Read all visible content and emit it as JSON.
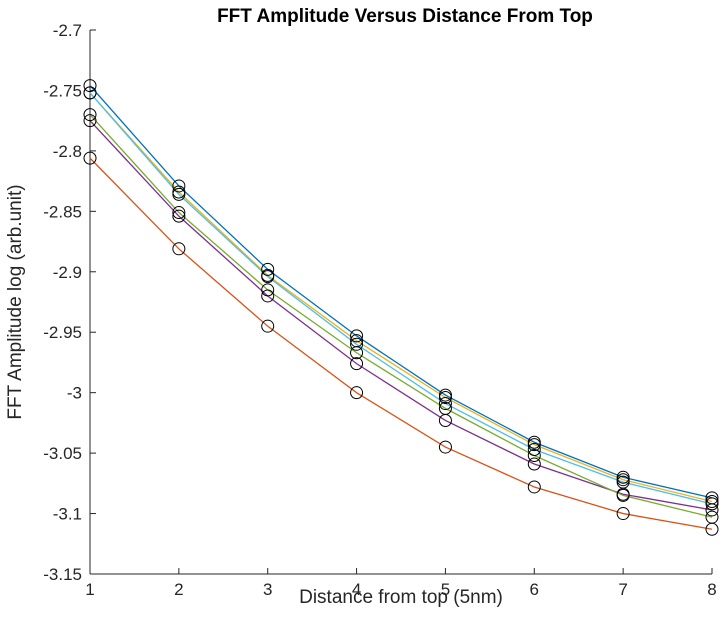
{
  "chart_data": {
    "type": "line",
    "title": "FFT Amplitude Versus Distance From Top",
    "xlabel": "Distance from top (5nm)",
    "ylabel": "FFT Amplitude log (arb.unit)",
    "xlim": [
      1,
      8
    ],
    "ylim": [
      -3.15,
      -2.7
    ],
    "x": [
      1,
      2,
      3,
      4,
      5,
      6,
      7,
      8
    ],
    "xticks": [
      "1",
      "2",
      "3",
      "4",
      "5",
      "6",
      "7",
      "8"
    ],
    "yticks": [
      "-2.7",
      "-2.75",
      "-2.8",
      "-2.85",
      "-2.9",
      "-2.95",
      "-3",
      "-3.05",
      "-3.1",
      "-3.15"
    ],
    "grid": false,
    "legend": false,
    "marker": "open-circle",
    "marker_color": "#000000",
    "series": [
      {
        "color": "#0072BD",
        "values": [
          -2.746,
          -2.829,
          -2.898,
          -2.953,
          -3.002,
          -3.041,
          -3.07,
          -3.087
        ]
      },
      {
        "color": "#D95319",
        "values": [
          -2.806,
          -2.881,
          -2.945,
          -3.0,
          -3.045,
          -3.078,
          -3.1,
          -3.113
        ]
      },
      {
        "color": "#EDB120",
        "values": [
          -2.752,
          -2.834,
          -2.903,
          -2.957,
          -3.004,
          -3.043,
          -3.072,
          -3.09
        ]
      },
      {
        "color": "#7E2F8E",
        "values": [
          -2.775,
          -2.854,
          -2.92,
          -2.976,
          -3.023,
          -3.059,
          -3.084,
          -3.097
        ]
      },
      {
        "color": "#77AC30",
        "values": [
          -2.77,
          -2.851,
          -2.915,
          -2.967,
          -3.013,
          -3.052,
          -3.085,
          -3.103
        ]
      },
      {
        "color": "#4DBEEE",
        "values": [
          -2.752,
          -2.836,
          -2.904,
          -2.96,
          -3.009,
          -3.047,
          -3.074,
          -3.092
        ]
      }
    ]
  }
}
